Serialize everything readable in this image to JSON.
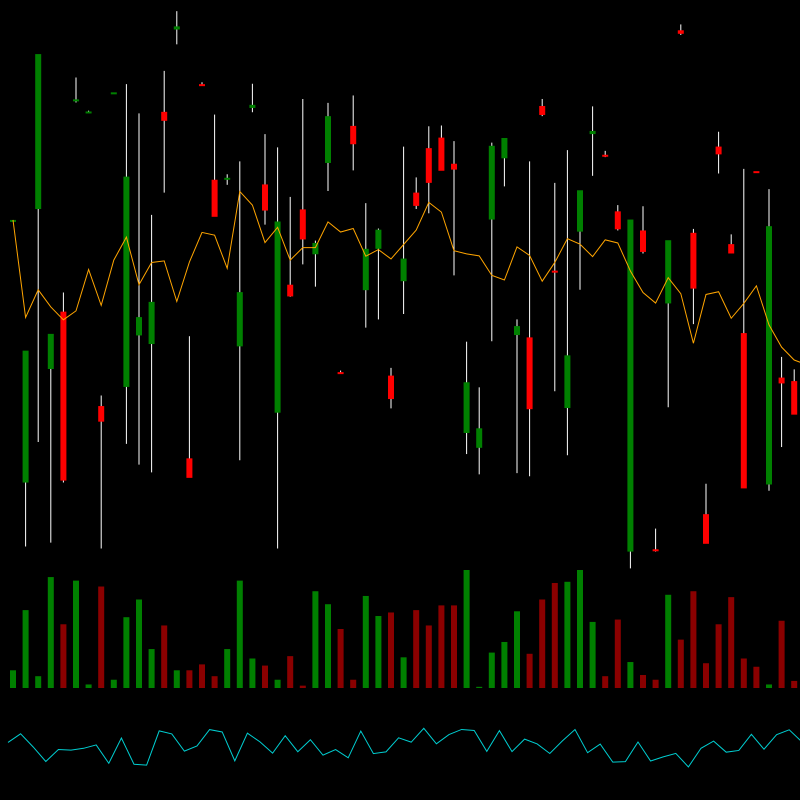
{
  "colors": {
    "background": "#000000",
    "up": "#008000",
    "down": "#ff0000",
    "wick": "#ffffff",
    "volume_up": "#008000",
    "volume_down": "#8b0000",
    "ma_line": "#ffa500",
    "indicator_line": "#00ced1"
  },
  "chart_data": [
    {
      "type": "candlestick",
      "title": "",
      "ylim": [
        0,
        1
      ],
      "grid": false,
      "legend": "none",
      "series": [
        {
          "values": [
            {
              "o": 0.792,
              "h": 0.792,
              "l": 0.792,
              "c": 0.792
            },
            {
              "o": 0.119,
              "h": 0.429,
              "l": -0.045,
              "c": 0.457
            },
            {
              "o": 0.82,
              "h": 1.116,
              "l": 0.223,
              "c": 1.217
            },
            {
              "o": 0.41,
              "h": 0.47,
              "l": -0.035,
              "c": 0.5
            },
            {
              "o": 0.557,
              "h": 0.606,
              "l": 0.119,
              "c": 0.124
            },
            {
              "o": 1.098,
              "h": 1.157,
              "l": 1.093,
              "c": 1.101
            },
            {
              "o": 1.069,
              "h": 1.072,
              "l": 1.067,
              "c": 1.07
            },
            {
              "o": 0.315,
              "h": 0.342,
              "l": -0.05,
              "c": 0.275
            },
            {
              "o": 1.119,
              "h": 1.119,
              "l": 1.119,
              "c": 1.119
            },
            {
              "o": 0.364,
              "h": 1.14,
              "l": 0.218,
              "c": 0.903
            },
            {
              "o": 0.496,
              "h": 1.065,
              "l": 0.165,
              "c": 0.543
            },
            {
              "o": 0.474,
              "h": 0.805,
              "l": 0.145,
              "c": 0.582
            },
            {
              "o": 1.069,
              "h": 1.174,
              "l": 0.862,
              "c": 1.046
            },
            {
              "o": 1.28,
              "h": 1.327,
              "l": 1.242,
              "c": 1.288
            },
            {
              "o": 0.181,
              "h": 0.494,
              "l": 0.18,
              "c": 0.131
            },
            {
              "o": 1.14,
              "h": 1.145,
              "l": 1.138,
              "c": 1.136
            },
            {
              "o": 0.895,
              "h": 1.062,
              "l": 0.848,
              "c": 0.8
            },
            {
              "o": 0.895,
              "h": 0.909,
              "l": 0.882,
              "c": 0.9
            },
            {
              "o": 0.468,
              "h": 0.942,
              "l": 0.176,
              "c": 0.607
            },
            {
              "o": 1.079,
              "h": 1.141,
              "l": 1.068,
              "c": 1.087
            },
            {
              "o": 0.883,
              "h": 1.012,
              "l": 0.78,
              "c": 0.816
            },
            {
              "o": 0.298,
              "h": 0.978,
              "l": -0.05,
              "c": 0.788
            },
            {
              "o": 0.626,
              "h": 0.851,
              "l": 0.595,
              "c": 0.596
            },
            {
              "o": 0.819,
              "h": 1.102,
              "l": 0.678,
              "c": 0.742
            },
            {
              "o": 0.704,
              "h": 0.739,
              "l": 0.621,
              "c": 0.733
            },
            {
              "o": 0.938,
              "h": 1.092,
              "l": 0.866,
              "c": 1.058
            },
            {
              "o": 0.402,
              "h": 0.406,
              "l": 0.399,
              "c": 0.398
            },
            {
              "o": 1.033,
              "h": 1.111,
              "l": 0.919,
              "c": 0.986
            },
            {
              "o": 0.612,
              "h": 0.835,
              "l": 0.516,
              "c": 0.718
            },
            {
              "o": 0.718,
              "h": 0.77,
              "l": 0.537,
              "c": 0.767
            },
            {
              "o": 0.393,
              "h": 0.413,
              "l": 0.309,
              "c": 0.333
            },
            {
              "o": 0.635,
              "h": 0.98,
              "l": 0.551,
              "c": 0.693
            },
            {
              "o": 0.862,
              "h": 0.901,
              "l": 0.82,
              "c": 0.828
            },
            {
              "o": 0.976,
              "h": 1.032,
              "l": 0.809,
              "c": 0.887
            },
            {
              "o": 1.003,
              "h": 1.034,
              "l": 0.95,
              "c": 0.918
            },
            {
              "o": 0.936,
              "h": 0.994,
              "l": 0.65,
              "c": 0.921
            },
            {
              "o": 0.246,
              "h": 0.48,
              "l": 0.192,
              "c": 0.376
            },
            {
              "o": 0.208,
              "h": 0.363,
              "l": 0.14,
              "c": 0.258
            },
            {
              "o": 0.793,
              "h": 0.99,
              "l": 0.481,
              "c": 0.982
            },
            {
              "o": 0.95,
              "h": 1.002,
              "l": 0.878,
              "c": 1.002
            },
            {
              "o": 0.497,
              "h": 0.537,
              "l": 0.143,
              "c": 0.52
            },
            {
              "o": 0.491,
              "h": 0.942,
              "l": 0.135,
              "c": 0.307
            },
            {
              "o": 1.084,
              "h": 1.102,
              "l": 1.058,
              "c": 1.061
            },
            {
              "o": 0.662,
              "h": 0.887,
              "l": 0.353,
              "c": 0.66
            },
            {
              "o": 0.31,
              "h": 0.971,
              "l": 0.189,
              "c": 0.445
            },
            {
              "o": 0.762,
              "h": 0.824,
              "l": 0.613,
              "c": 0.868
            },
            {
              "o": 1.012,
              "h": 1.083,
              "l": 0.905,
              "c": 1.02
            },
            {
              "o": 0.959,
              "h": 0.969,
              "l": 0.953,
              "c": 0.957
            },
            {
              "o": 0.814,
              "h": 0.83,
              "l": 0.765,
              "c": 0.768
            },
            {
              "o": -0.058,
              "h": 0.762,
              "l": -0.101,
              "c": 0.793
            },
            {
              "o": 0.765,
              "h": 0.827,
              "l": 0.706,
              "c": 0.71
            },
            {
              "o": -0.052,
              "h": 0.001,
              "l": -0.058,
              "c": -0.054
            },
            {
              "o": 0.578,
              "h": 0.735,
              "l": 0.312,
              "c": 0.74
            },
            {
              "o": 1.278,
              "h": 1.293,
              "l": 1.266,
              "c": 1.269
            },
            {
              "o": 0.759,
              "h": 0.769,
              "l": 0.525,
              "c": 0.616
            },
            {
              "o": 0.038,
              "h": 0.116,
              "l": -0.013,
              "c": -0.038
            },
            {
              "o": 0.98,
              "h": 1.018,
              "l": 0.911,
              "c": 0.96
            },
            {
              "o": 0.73,
              "h": 0.755,
              "l": 0.706,
              "c": 0.706
            },
            {
              "o": 0.502,
              "h": 0.923,
              "l": 0.115,
              "c": 0.104
            },
            {
              "o": 0.917,
              "h": 0.917,
              "l": 0.917,
              "c": 0.913
            },
            {
              "o": 0.114,
              "h": 0.871,
              "l": 0.098,
              "c": 0.776
            },
            {
              "o": 0.388,
              "h": 0.441,
              "l": 0.21,
              "c": 0.373
            },
            {
              "o": 0.379,
              "h": 0.409,
              "l": 0.345,
              "c": 0.293
            },
            {
              "o": 0.337,
              "h": 0.429,
              "l": 0.158,
              "c": 0.378
            }
          ]
        },
        {
          "values": [
            0.792,
            0.542,
            0.613,
            0.569,
            0.536,
            0.559,
            0.665,
            0.573,
            0.689,
            0.748,
            0.626,
            0.683,
            0.687,
            0.583,
            0.684,
            0.76,
            0.753,
            0.668,
            0.865,
            0.83,
            0.734,
            0.773,
            0.689,
            0.721,
            0.721,
            0.787,
            0.761,
            0.77,
            0.699,
            0.716,
            0.692,
            0.729,
            0.766,
            0.837,
            0.812,
            0.713,
            0.705,
            0.7,
            0.65,
            0.638,
            0.723,
            0.701,
            0.635,
            0.683,
            0.744,
            0.73,
            0.698,
            0.741,
            0.733,
            0.661,
            0.606,
            0.579,
            0.644,
            0.603,
            0.476,
            0.601,
            0.608,
            0.54,
            0.578,
            0.623,
            0.523,
            0.466,
            0.433,
            0.421
          ]
        }
      ]
    },
    {
      "type": "bar",
      "title": "",
      "ylim": [
        0,
        1
      ],
      "grid": false,
      "legend": "none",
      "series": [
        {
          "values": [
            0.15,
            0.66,
            0.1,
            0.94,
            0.54,
            0.91,
            0.03,
            0.86,
            0.07,
            0.6,
            0.75,
            0.33,
            0.53,
            0.15,
            0.15,
            0.2,
            0.1,
            0.33,
            0.91,
            0.25,
            0.19,
            0.07,
            0.27,
            0.02,
            0.82,
            0.71,
            0.5,
            0.07,
            0.78,
            0.61,
            0.64,
            0.26,
            0.66,
            0.53,
            0.7,
            0.7,
            1.0,
            0.01,
            0.3,
            0.39,
            0.65,
            0.29,
            0.75,
            0.89,
            0.9,
            1.0,
            0.56,
            0.1,
            0.58,
            0.22,
            0.11,
            0.07,
            0.79,
            0.41,
            0.82,
            0.21,
            0.54,
            0.77,
            0.25,
            0.18,
            0.03,
            0.57,
            0.06,
            0.31
          ]
        }
      ]
    },
    {
      "type": "line",
      "title": "",
      "ylim": [
        0,
        1
      ],
      "grid": false,
      "legend": "none",
      "series": [
        {
          "values": [
            0.595,
            0.795,
            0.489,
            0.151,
            0.43,
            0.416,
            0.458,
            0.537,
            0.109,
            0.698,
            0.087,
            0.067,
            0.863,
            0.792,
            0.392,
            0.513,
            0.893,
            0.838,
            0.166,
            0.81,
            0.607,
            0.345,
            0.751,
            0.379,
            0.658,
            0.299,
            0.429,
            0.237,
            0.859,
            0.335,
            0.375,
            0.703,
            0.601,
            0.924,
            0.563,
            0.777,
            0.896,
            0.873,
            0.386,
            0.869,
            0.381,
            0.672,
            0.56,
            0.338,
            0.631,
            0.895,
            0.356,
            0.557,
            0.136,
            0.148,
            0.605,
            0.163,
            0.259,
            0.339,
            0.025,
            0.459,
            0.626,
            0.368,
            0.408,
            0.783,
            0.436,
            0.776,
            0.888,
            0.611
          ]
        }
      ]
    }
  ]
}
